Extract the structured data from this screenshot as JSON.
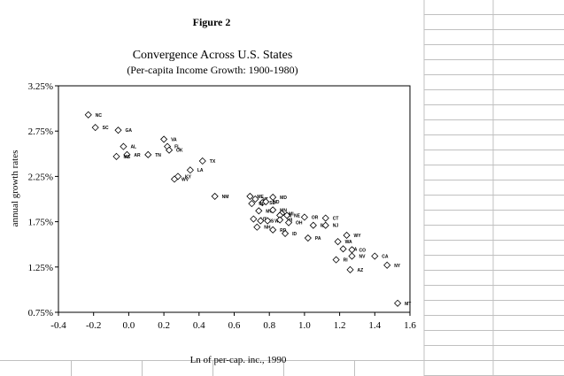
{
  "figure_label": "Figure 2",
  "chart_data": {
    "type": "scatter",
    "title": "Convergence Across U.S. States",
    "subtitle": "(Per-capita Income Growth: 1900-1980)",
    "xlabel": "Ln of per-cap. inc., 1990",
    "ylabel": "annual growth rates",
    "xlim": [
      -0.4,
      1.6
    ],
    "ylim": [
      0.75,
      3.25
    ],
    "xticks": [
      "-0.4",
      "-0.2",
      "0.0",
      "0.2",
      "0.4",
      "0.6",
      "0.8",
      "1.0",
      "1.2",
      "1.4",
      "1.6"
    ],
    "yticks": [
      "0.75%",
      "1.25%",
      "1.75%",
      "2.25%",
      "2.75%",
      "3.25%"
    ],
    "grid": false,
    "legend": "none",
    "marker": "diamond",
    "points": [
      {
        "label": "NC",
        "x": -0.23,
        "y": 2.93
      },
      {
        "label": "SC",
        "x": -0.19,
        "y": 2.79
      },
      {
        "label": "GA",
        "x": -0.06,
        "y": 2.76
      },
      {
        "label": "AL",
        "x": -0.03,
        "y": 2.58
      },
      {
        "label": "AR",
        "x": -0.01,
        "y": 2.49
      },
      {
        "label": "MS",
        "x": -0.07,
        "y": 2.47
      },
      {
        "label": "TN",
        "x": 0.11,
        "y": 2.49
      },
      {
        "label": "VA",
        "x": 0.2,
        "y": 2.66
      },
      {
        "label": "FL",
        "x": 0.22,
        "y": 2.58
      },
      {
        "label": "OK",
        "x": 0.23,
        "y": 2.54
      },
      {
        "label": "TX",
        "x": 0.42,
        "y": 2.42
      },
      {
        "label": "LA",
        "x": 0.35,
        "y": 2.32
      },
      {
        "label": "KY",
        "x": 0.28,
        "y": 2.25
      },
      {
        "label": "WV",
        "x": 0.26,
        "y": 2.22
      },
      {
        "label": "NM",
        "x": 0.49,
        "y": 2.03
      },
      {
        "label": "ME",
        "x": 0.69,
        "y": 2.03
      },
      {
        "label": "VT",
        "x": 0.72,
        "y": 2.0
      },
      {
        "label": "SD",
        "x": 0.76,
        "y": 1.96
      },
      {
        "label": "ND",
        "x": 0.78,
        "y": 1.97
      },
      {
        "label": "IN",
        "x": 0.7,
        "y": 1.95
      },
      {
        "label": "MD",
        "x": 0.82,
        "y": 2.02
      },
      {
        "label": "MO",
        "x": 0.74,
        "y": 1.87
      },
      {
        "label": "MN",
        "x": 0.82,
        "y": 1.88
      },
      {
        "label": "MI",
        "x": 0.87,
        "y": 1.84
      },
      {
        "label": "IA",
        "x": 0.86,
        "y": 1.82
      },
      {
        "label": "NE",
        "x": 0.9,
        "y": 1.82
      },
      {
        "label": "UT",
        "x": 0.71,
        "y": 1.78
      },
      {
        "label": "KS",
        "x": 0.75,
        "y": 1.76
      },
      {
        "label": "WY",
        "x": 0.79,
        "y": 1.76
      },
      {
        "label": "WI",
        "x": 0.86,
        "y": 1.77
      },
      {
        "label": "OH",
        "x": 0.91,
        "y": 1.74
      },
      {
        "label": "NH",
        "x": 0.73,
        "y": 1.69
      },
      {
        "label": "RD",
        "x": 0.82,
        "y": 1.66
      },
      {
        "label": "ID",
        "x": 0.89,
        "y": 1.62
      },
      {
        "label": "OR",
        "x": 1.0,
        "y": 1.8
      },
      {
        "label": "CT",
        "x": 1.12,
        "y": 1.79
      },
      {
        "label": "IL",
        "x": 1.05,
        "y": 1.71
      },
      {
        "label": "NJ",
        "x": 1.12,
        "y": 1.71
      },
      {
        "label": "PA",
        "x": 1.02,
        "y": 1.57
      },
      {
        "label": "WY",
        "x": 1.24,
        "y": 1.6
      },
      {
        "label": "WA",
        "x": 1.19,
        "y": 1.53
      },
      {
        "label": "MA",
        "x": 1.22,
        "y": 1.45
      },
      {
        "label": "CO",
        "x": 1.27,
        "y": 1.44
      },
      {
        "label": "NV",
        "x": 1.27,
        "y": 1.37
      },
      {
        "label": "RI",
        "x": 1.18,
        "y": 1.33
      },
      {
        "label": "CA",
        "x": 1.4,
        "y": 1.37
      },
      {
        "label": "NY",
        "x": 1.47,
        "y": 1.27
      },
      {
        "label": "AZ",
        "x": 1.26,
        "y": 1.22
      },
      {
        "label": "MT",
        "x": 1.53,
        "y": 0.85
      }
    ]
  }
}
